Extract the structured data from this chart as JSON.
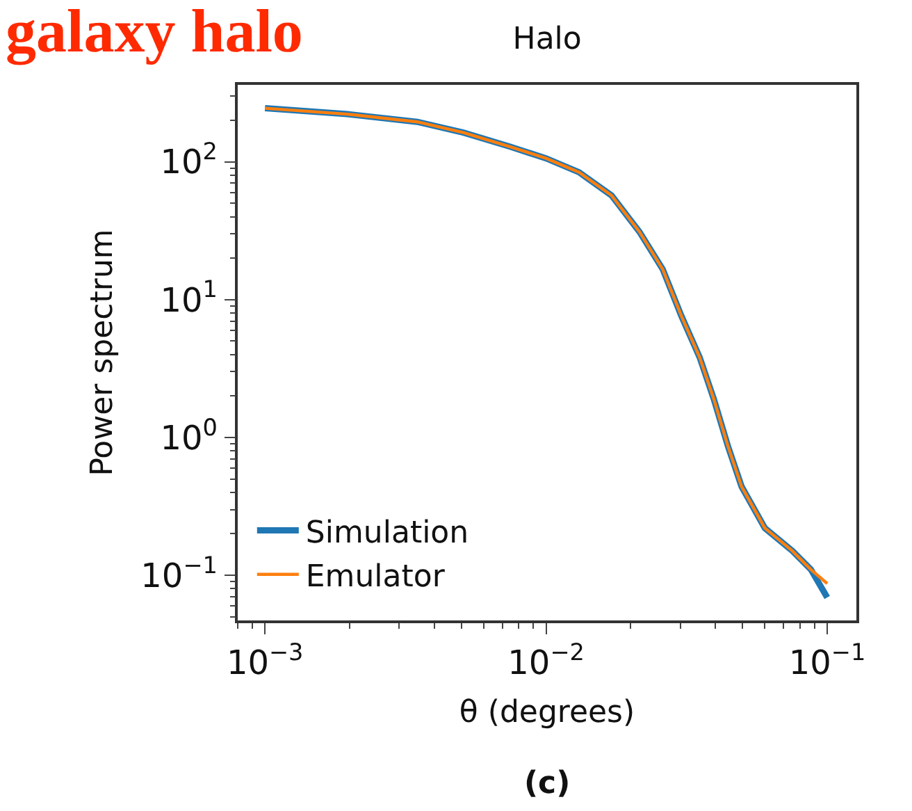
{
  "chart_data": {
    "type": "line",
    "title": "Halo",
    "xlabel": "θ (degrees)",
    "ylabel": "Power spectrum",
    "log": "xy",
    "grid": false,
    "legend": "bottom left",
    "line_style": "solid",
    "marker": "none",
    "xlim": [
      0.0008,
      0.127
    ],
    "ylim": [
      0.047,
      362
    ],
    "xticks": [
      {
        "value": 0.001,
        "label": "10$^{−3}$"
      },
      {
        "value": 0.01,
        "label": "10$^{−2}$"
      },
      {
        "value": 0.1,
        "label": "10$^{−1}$"
      }
    ],
    "yticks": [
      {
        "value": 0.1,
        "label": "10$^{−1}$"
      },
      {
        "value": 1,
        "label": "10$^{0}$"
      },
      {
        "value": 10,
        "label": "10$^{1}$"
      },
      {
        "value": 100,
        "label": "10$^{2}$"
      }
    ],
    "annotations": [
      "galaxy halo",
      "(c)"
    ],
    "series": [
      {
        "name": "Simulation",
        "color": "#1f77b4",
        "x": [
          0.001,
          0.00196,
          0.00348,
          0.00508,
          0.00743,
          0.01,
          0.0131,
          0.0171,
          0.0215,
          0.026,
          0.0303,
          0.0352,
          0.0395,
          0.0443,
          0.0496,
          0.06,
          0.0752,
          0.0875,
          0.1
        ],
        "values": [
          245,
          222,
          195,
          163,
          129,
          106,
          84,
          57,
          31,
          16.6,
          7.6,
          3.8,
          1.9,
          0.87,
          0.44,
          0.22,
          0.15,
          0.11,
          0.069
        ]
      },
      {
        "name": "Emulator",
        "color": "#ff7f0e",
        "x": [
          0.001,
          0.00196,
          0.00348,
          0.00508,
          0.00743,
          0.01,
          0.0131,
          0.0171,
          0.0215,
          0.026,
          0.0303,
          0.0352,
          0.0395,
          0.0443,
          0.0496,
          0.06,
          0.0752,
          0.0875,
          0.1
        ],
        "values": [
          245,
          222,
          195,
          163,
          129,
          106,
          84,
          57,
          31,
          16.6,
          7.6,
          3.8,
          1.9,
          0.87,
          0.44,
          0.22,
          0.15,
          0.11,
          0.087
        ]
      }
    ]
  }
}
